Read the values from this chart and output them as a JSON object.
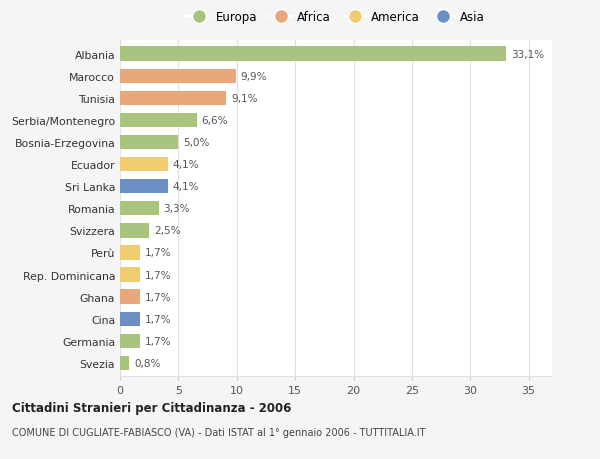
{
  "countries": [
    "Albania",
    "Marocco",
    "Tunisia",
    "Serbia/Montenegro",
    "Bosnia-Erzegovina",
    "Ecuador",
    "Sri Lanka",
    "Romania",
    "Svizzera",
    "Perù",
    "Rep. Dominicana",
    "Ghana",
    "Cina",
    "Germania",
    "Svezia"
  ],
  "values": [
    33.1,
    9.9,
    9.1,
    6.6,
    5.0,
    4.1,
    4.1,
    3.3,
    2.5,
    1.7,
    1.7,
    1.7,
    1.7,
    1.7,
    0.8
  ],
  "labels": [
    "33,1%",
    "9,9%",
    "9,1%",
    "6,6%",
    "5,0%",
    "4,1%",
    "4,1%",
    "3,3%",
    "2,5%",
    "1,7%",
    "1,7%",
    "1,7%",
    "1,7%",
    "1,7%",
    "0,8%"
  ],
  "colors": [
    "#a8c47e",
    "#e8a87c",
    "#e8a87c",
    "#a8c47e",
    "#a8c47e",
    "#f0cc70",
    "#6b8ec4",
    "#a8c47e",
    "#a8c47e",
    "#f0cc70",
    "#f0cc70",
    "#e8a87c",
    "#6b8ec4",
    "#a8c47e",
    "#a8c47e"
  ],
  "legend_labels": [
    "Europa",
    "Africa",
    "America",
    "Asia"
  ],
  "legend_colors": [
    "#a8c47e",
    "#e8a87c",
    "#f0cc70",
    "#6b8ec4"
  ],
  "title_bold": "Cittadini Stranieri per Cittadinanza - 2006",
  "subtitle": "COMUNE DI CUGLIATE-FABIASCO (VA) - Dati ISTAT al 1° gennaio 2006 - TUTTITALIA.IT",
  "xlim": [
    0,
    37
  ],
  "xticks": [
    0,
    5,
    10,
    15,
    20,
    25,
    30,
    35
  ],
  "background_color": "#f5f5f5",
  "bar_background": "#ffffff",
  "grid_color": "#e0e0e0"
}
